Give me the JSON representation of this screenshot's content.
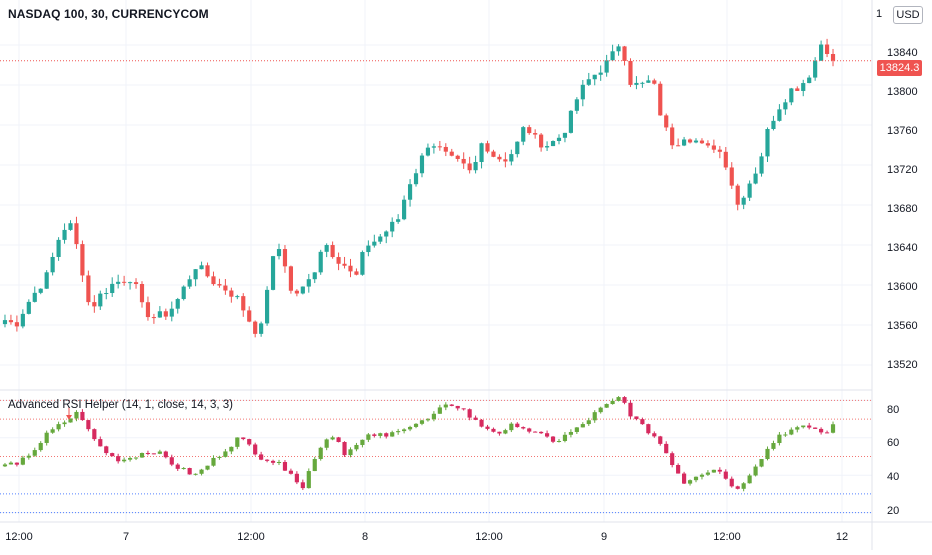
{
  "header": {
    "symbol_title": "NASDAQ 100, 30, CURRENCYCOM",
    "currency_button": "USD",
    "scale_hint": "1"
  },
  "price_axis": {
    "ticks": [
      "13840",
      "13800",
      "13760",
      "13720",
      "13680",
      "13640",
      "13600",
      "13560",
      "13520"
    ],
    "last_price": "13824.3"
  },
  "indicator": {
    "title": "Advanced RSI Helper (14, 1, close, 14, 3, 3)",
    "ticks": [
      "80",
      "60",
      "40",
      "20"
    ]
  },
  "time_axis": {
    "ticks": [
      "12:00",
      "7",
      "12:00",
      "8",
      "12:00",
      "9",
      "12:00",
      "12"
    ]
  },
  "colors": {
    "up": "#26a69a",
    "down": "#ef5350",
    "rsi_up": "#66a83d",
    "rsi_down": "#d62a5f",
    "grid": "#f0f3fa",
    "level_red": "#ef5350",
    "level_blue": "#2962ff"
  },
  "chart_data": [
    {
      "type": "candlestick",
      "title": "NASDAQ 100, 30, CURRENCYCOM",
      "ylim": [
        13495,
        13885
      ],
      "last_value": 13824.3,
      "close_path": [
        13565,
        13560,
        13580,
        13595,
        13610,
        13645,
        13665,
        13630,
        13575,
        13590,
        13600,
        13605,
        13608,
        13575,
        13568,
        13570,
        13580,
        13600,
        13620,
        13610,
        13600,
        13595,
        13585,
        13565,
        13548,
        13620,
        13640,
        13590,
        13595,
        13610,
        13645,
        13630,
        13620,
        13605,
        13640,
        13645,
        13655,
        13665,
        13700,
        13720,
        13745,
        13735,
        13725,
        13720,
        13710,
        13745,
        13730,
        13725,
        13735,
        13760,
        13745,
        13740,
        13745,
        13760,
        13790,
        13805,
        13815,
        13825,
        13845,
        13800,
        13800,
        13805,
        13760,
        13740,
        13750,
        13745,
        13735,
        13740,
        13720,
        13680,
        13700,
        13720,
        13760,
        13780,
        13795,
        13800,
        13815,
        13845,
        13824.3
      ],
      "wick": 12
    },
    {
      "type": "rsi-histogram",
      "title": "Advanced RSI Helper (14, 1, close, 14, 3, 3)",
      "ylim": [
        15,
        85
      ],
      "levels": [
        80,
        70,
        50,
        30,
        20
      ],
      "line_path": [
        47,
        44,
        50,
        55,
        62,
        66,
        70,
        74,
        62,
        55,
        50,
        48,
        50,
        52,
        53,
        50,
        45,
        42,
        40,
        45,
        50,
        55,
        60,
        56,
        50,
        48,
        45,
        42,
        32,
        48,
        58,
        62,
        52,
        55,
        60,
        62,
        60,
        65,
        66,
        68,
        70,
        75,
        78,
        76,
        70,
        66,
        64,
        62,
        68,
        65,
        62,
        60,
        58,
        62,
        65,
        70,
        75,
        78,
        82,
        72,
        66,
        62,
        55,
        45,
        36,
        40,
        42,
        44,
        38,
        32,
        40,
        48,
        55,
        62,
        64,
        65,
        66,
        62,
        66
      ]
    }
  ]
}
